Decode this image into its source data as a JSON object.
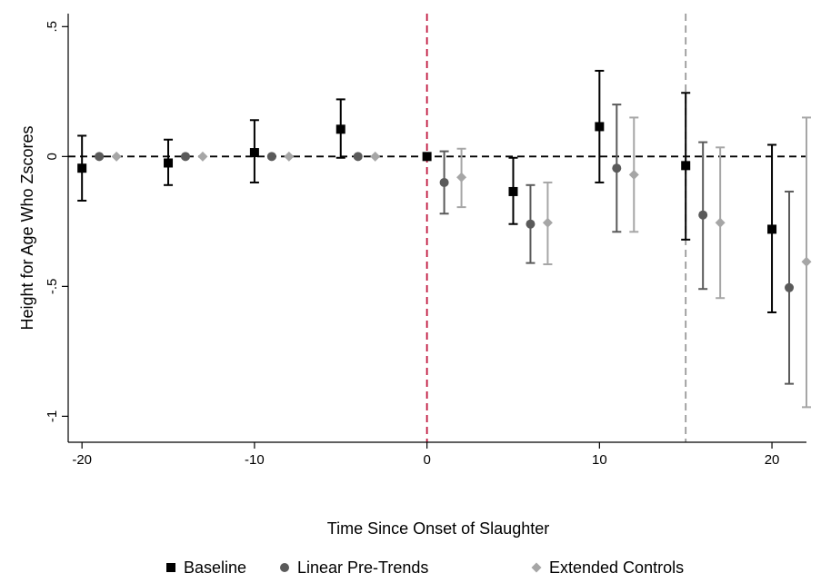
{
  "chart_data": {
    "type": "scatter",
    "title": "",
    "xlabel": "Time Since Onset of Slaughter",
    "ylabel": "Height for Age Who Zscores",
    "xlim": [
      -20.8,
      22
    ],
    "ylim": [
      -1.1,
      0.55
    ],
    "xticks": [
      -20,
      -10,
      0,
      10,
      20
    ],
    "xtick_labels": [
      "-20",
      "-10",
      "0",
      "10",
      "20"
    ],
    "yticks": [
      -1,
      -0.5,
      0,
      0.5
    ],
    "ytick_labels": [
      "-1",
      "-.5",
      "0",
      ".5"
    ],
    "grid": false,
    "legend_position": "bottom",
    "reference_lines": [
      {
        "axis": "y",
        "value": 0,
        "style": "dashed",
        "color": "#000000"
      },
      {
        "axis": "x",
        "value": 0,
        "style": "dashed",
        "color": "#c0143c"
      },
      {
        "axis": "x",
        "value": 15,
        "style": "dashed",
        "color": "#999999"
      }
    ],
    "series": [
      {
        "name": "Baseline",
        "marker": "square",
        "color": "#000000",
        "points": [
          {
            "x": -20,
            "y": -0.045,
            "lo": -0.17,
            "hi": 0.08
          },
          {
            "x": -15,
            "y": -0.025,
            "lo": -0.11,
            "hi": 0.065
          },
          {
            "x": -10,
            "y": 0.015,
            "lo": -0.1,
            "hi": 0.14
          },
          {
            "x": -5,
            "y": 0.105,
            "lo": -0.005,
            "hi": 0.22
          },
          {
            "x": 0,
            "y": 0.0
          },
          {
            "x": 5,
            "y": -0.135,
            "lo": -0.26,
            "hi": -0.005
          },
          {
            "x": 10,
            "y": 0.115,
            "lo": -0.1,
            "hi": 0.33
          },
          {
            "x": 15,
            "y": -0.035,
            "lo": -0.32,
            "hi": 0.245
          },
          {
            "x": 20,
            "y": -0.28,
            "lo": -0.6,
            "hi": 0.045
          }
        ]
      },
      {
        "name": "Linear Pre-Trends",
        "marker": "circle",
        "color": "#5a5a5a",
        "points": [
          {
            "x": -19,
            "y": 0.0
          },
          {
            "x": -14,
            "y": 0.0
          },
          {
            "x": -9,
            "y": 0.0
          },
          {
            "x": -4,
            "y": 0.0
          },
          {
            "x": 1,
            "y": -0.1,
            "lo": -0.22,
            "hi": 0.02
          },
          {
            "x": 6,
            "y": -0.26,
            "lo": -0.41,
            "hi": -0.11
          },
          {
            "x": 11,
            "y": -0.045,
            "lo": -0.29,
            "hi": 0.2
          },
          {
            "x": 16,
            "y": -0.225,
            "lo": -0.51,
            "hi": 0.055
          },
          {
            "x": 21,
            "y": -0.505,
            "lo": -0.875,
            "hi": -0.135
          }
        ]
      },
      {
        "name": "Extended Controls",
        "marker": "diamond",
        "color": "#a6a6a6",
        "points": [
          {
            "x": -18,
            "y": 0.0
          },
          {
            "x": -13,
            "y": 0.0
          },
          {
            "x": -8,
            "y": 0.0
          },
          {
            "x": -3,
            "y": 0.0
          },
          {
            "x": 2,
            "y": -0.08,
            "lo": -0.195,
            "hi": 0.03
          },
          {
            "x": 7,
            "y": -0.255,
            "lo": -0.415,
            "hi": -0.1
          },
          {
            "x": 12,
            "y": -0.07,
            "lo": -0.29,
            "hi": 0.15
          },
          {
            "x": 17,
            "y": -0.255,
            "lo": -0.545,
            "hi": 0.035
          },
          {
            "x": 22,
            "y": -0.405,
            "lo": -0.965,
            "hi": 0.15
          }
        ]
      }
    ]
  }
}
